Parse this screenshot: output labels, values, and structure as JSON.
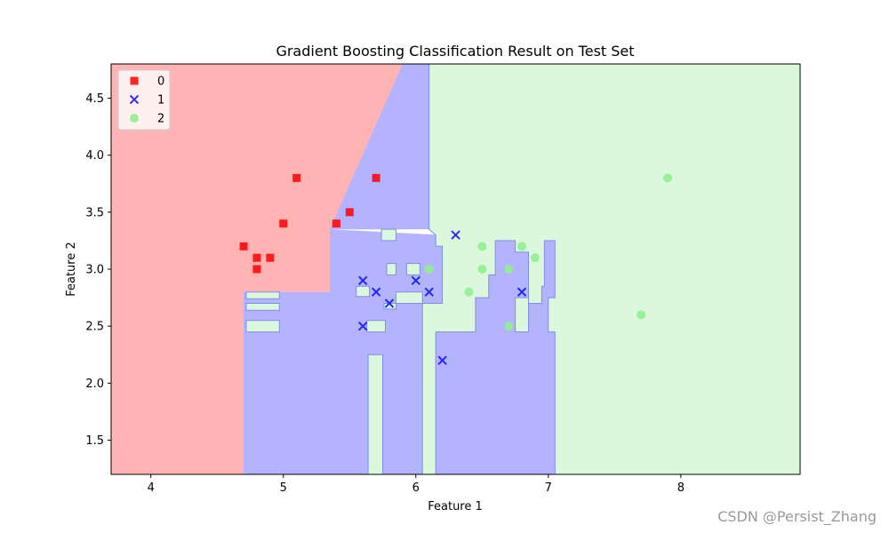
{
  "chart_data": {
    "type": "scatter",
    "title": "Gradient Boosting Classification Result on Test Set",
    "xlabel": "Feature 1",
    "ylabel": "Feature 2",
    "xlim": [
      3.7,
      8.9
    ],
    "ylim": [
      1.2,
      4.8
    ],
    "xticks": [
      "4",
      "5",
      "6",
      "7",
      "8"
    ],
    "yticks": [
      "1.5",
      "2.0",
      "2.5",
      "3.0",
      "3.5",
      "4.0",
      "4.5"
    ],
    "grid": false,
    "legend_position": "top-left",
    "series": [
      {
        "name": "0",
        "marker": "square",
        "color": "#ff0000",
        "points": [
          [
            4.7,
            3.2
          ],
          [
            4.8,
            3.1
          ],
          [
            4.8,
            3.0
          ],
          [
            4.9,
            3.1
          ],
          [
            5.0,
            3.4
          ],
          [
            5.1,
            3.8
          ],
          [
            5.4,
            3.4
          ],
          [
            5.5,
            3.5
          ],
          [
            5.7,
            3.8
          ]
        ]
      },
      {
        "name": "1",
        "marker": "x",
        "color": "#0000ff",
        "points": [
          [
            5.6,
            2.9
          ],
          [
            5.6,
            2.5
          ],
          [
            5.7,
            2.8
          ],
          [
            5.8,
            2.7
          ],
          [
            6.0,
            2.9
          ],
          [
            6.1,
            2.8
          ],
          [
            6.2,
            2.2
          ],
          [
            6.3,
            3.3
          ],
          [
            6.8,
            2.8
          ]
        ]
      },
      {
        "name": "2",
        "marker": "circle",
        "color": "#90ee90",
        "points": [
          [
            6.1,
            3.0
          ],
          [
            6.4,
            2.8
          ],
          [
            6.5,
            3.2
          ],
          [
            6.5,
            3.0
          ],
          [
            6.7,
            3.0
          ],
          [
            6.7,
            2.5
          ],
          [
            6.8,
            3.2
          ],
          [
            6.9,
            3.1
          ],
          [
            7.7,
            2.6
          ],
          [
            7.9,
            3.8
          ]
        ]
      }
    ],
    "region_colors": {
      "class0": "#ffb3b3",
      "class1": "#b3b3ff",
      "class2": "#dbf8dc"
    },
    "decision_regions": {
      "class0": [
        [
          [
            3.7,
            1.2
          ],
          [
            4.7,
            1.2
          ],
          [
            4.7,
            2.8
          ],
          [
            5.35,
            2.8
          ],
          [
            5.35,
            3.35
          ],
          [
            5.9,
            3.35
          ],
          [
            5.9,
            4.8
          ],
          [
            3.7,
            4.8
          ]
        ]
      ],
      "class1": [
        [
          [
            4.7,
            1.2
          ],
          [
            7.05,
            1.2
          ],
          [
            7.05,
            3.25
          ],
          [
            5.35,
            3.35
          ],
          [
            5.9,
            4.8
          ],
          [
            6.1,
            4.8
          ],
          [
            6.1,
            3.35
          ],
          [
            5.35,
            3.35
          ],
          [
            5.35,
            2.8
          ],
          [
            4.7,
            2.8
          ]
        ]
      ],
      "class2": [
        [
          [
            6.1,
            3.35
          ],
          [
            6.1,
            4.8
          ],
          [
            8.9,
            4.8
          ],
          [
            8.9,
            1.2
          ],
          [
            7.05,
            1.2
          ],
          [
            7.05,
            2.45
          ],
          [
            7.0,
            2.45
          ],
          [
            7.0,
            2.75
          ],
          [
            7.05,
            2.75
          ],
          [
            7.05,
            3.25
          ],
          [
            6.97,
            3.25
          ],
          [
            6.97,
            2.85
          ],
          [
            6.95,
            2.85
          ],
          [
            6.95,
            2.7
          ],
          [
            6.85,
            2.7
          ],
          [
            6.85,
            3.15
          ],
          [
            6.75,
            3.15
          ],
          [
            6.75,
            3.25
          ],
          [
            6.6,
            3.25
          ],
          [
            6.6,
            2.95
          ],
          [
            6.55,
            2.95
          ],
          [
            6.55,
            2.75
          ],
          [
            6.45,
            2.75
          ],
          [
            6.45,
            2.45
          ],
          [
            6.15,
            2.45
          ],
          [
            6.15,
            1.2
          ],
          [
            6.05,
            1.2
          ],
          [
            6.05,
            2.7
          ],
          [
            6.2,
            2.7
          ],
          [
            6.2,
            3.2
          ],
          [
            6.15,
            3.2
          ],
          [
            6.15,
            3.3
          ],
          [
            6.1,
            3.35
          ]
        ],
        [
          [
            4.72,
            2.74
          ],
          [
            4.97,
            2.74
          ],
          [
            4.97,
            2.8
          ],
          [
            4.72,
            2.8
          ]
        ],
        [
          [
            4.72,
            2.64
          ],
          [
            4.97,
            2.64
          ],
          [
            4.97,
            2.7
          ],
          [
            4.72,
            2.7
          ]
        ],
        [
          [
            4.72,
            2.45
          ],
          [
            4.97,
            2.45
          ],
          [
            4.97,
            2.55
          ],
          [
            4.72,
            2.55
          ]
        ],
        [
          [
            5.63,
            2.45
          ],
          [
            5.77,
            2.45
          ],
          [
            5.77,
            2.55
          ],
          [
            5.63,
            2.55
          ]
        ],
        [
          [
            5.64,
            1.2
          ],
          [
            5.75,
            1.2
          ],
          [
            5.75,
            2.25
          ],
          [
            5.64,
            2.25
          ]
        ],
        [
          [
            5.55,
            2.76
          ],
          [
            5.65,
            2.76
          ],
          [
            5.65,
            2.85
          ],
          [
            5.55,
            2.85
          ]
        ],
        [
          [
            5.74,
            3.25
          ],
          [
            5.85,
            3.25
          ],
          [
            5.85,
            3.35
          ],
          [
            5.74,
            3.35
          ]
        ],
        [
          [
            5.78,
            2.95
          ],
          [
            5.85,
            2.95
          ],
          [
            5.85,
            3.05
          ],
          [
            5.78,
            3.05
          ]
        ],
        [
          [
            5.93,
            2.95
          ],
          [
            6.03,
            2.95
          ],
          [
            6.03,
            3.05
          ],
          [
            5.93,
            3.05
          ]
        ],
        [
          [
            5.76,
            2.65
          ],
          [
            5.85,
            2.65
          ],
          [
            5.85,
            2.8
          ],
          [
            6.05,
            2.8
          ],
          [
            6.05,
            2.7
          ],
          [
            5.76,
            2.7
          ]
        ],
        [
          [
            6.75,
            2.45
          ],
          [
            6.85,
            2.45
          ],
          [
            6.85,
            2.75
          ],
          [
            6.75,
            2.75
          ]
        ]
      ]
    }
  },
  "watermark": "CSDN @Persist_Zhang"
}
